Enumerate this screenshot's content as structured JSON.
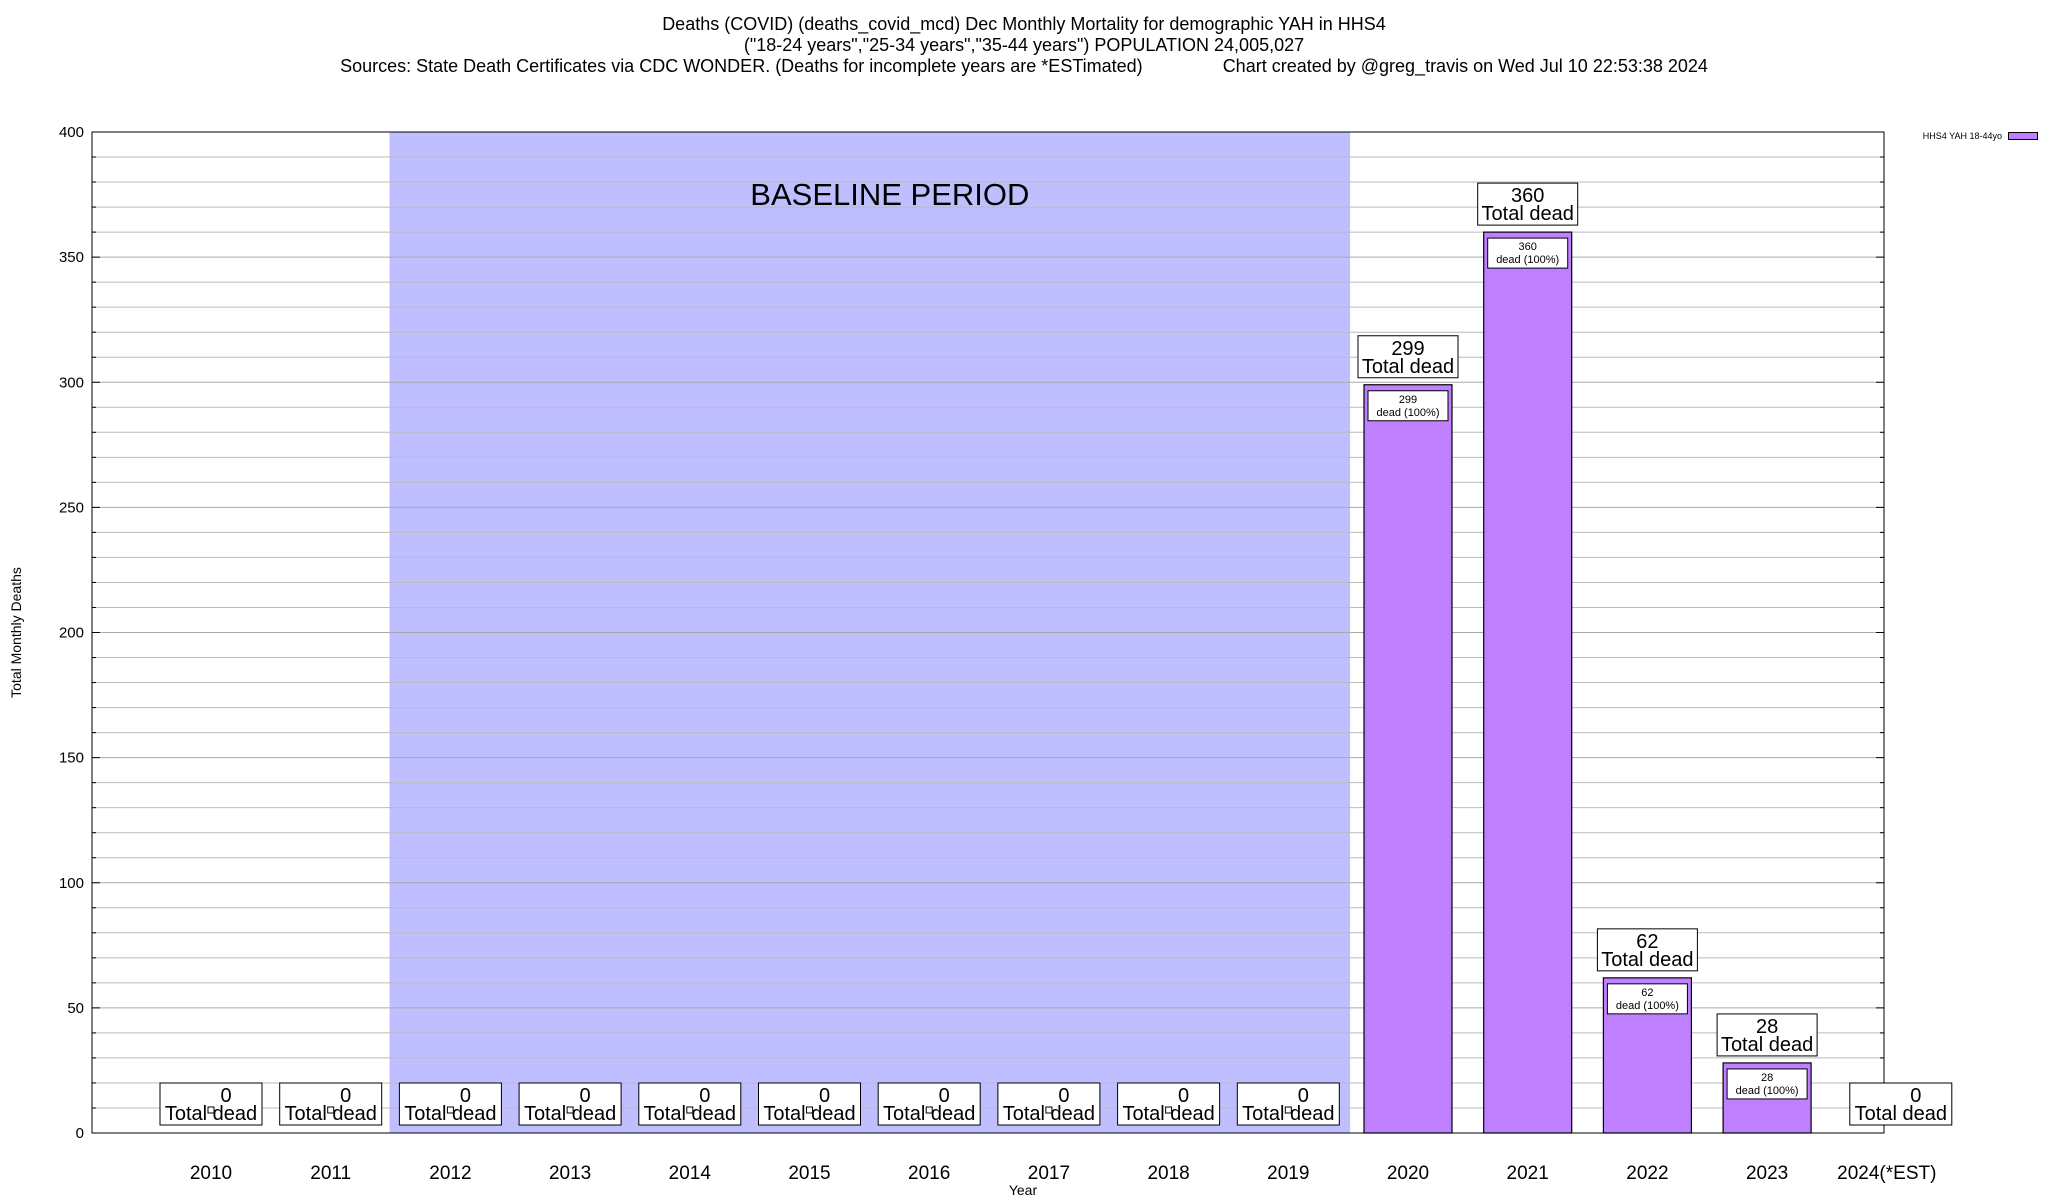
{
  "header": {
    "title_line1": "Deaths (COVID) (deaths_covid_mcd) Dec Monthly Mortality for demographic YAH in HHS4",
    "title_line2": "(\"18-24 years\",\"25-34 years\",\"35-44 years\") POPULATION 24,005,027",
    "sources": "Sources: State Death Certificates via CDC WONDER. (Deaths for incomplete years are *ESTimated)",
    "credit": "Chart created by @greg_travis on Wed Jul 10 22:53:38 2024"
  },
  "legend": {
    "label": "HHS4 YAH 18-44yo",
    "color": "#bf80ff"
  },
  "chart_data": {
    "type": "bar",
    "categories": [
      "2010",
      "2011",
      "2012",
      "2013",
      "2014",
      "2015",
      "2016",
      "2017",
      "2018",
      "2019",
      "2020",
      "2021",
      "2022",
      "2023",
      "2024(*EST)"
    ],
    "series": [
      {
        "name": "HHS4 YAH 18-44yo",
        "values": [
          0,
          0,
          0,
          0,
          0,
          0,
          0,
          0,
          0,
          0,
          299,
          360,
          62,
          28,
          0
        ]
      }
    ],
    "xlabel": "Year",
    "ylabel": "Total Monthly Deaths",
    "ylim": [
      0,
      400
    ],
    "yticks": [
      0,
      50,
      100,
      150,
      200,
      250,
      300,
      350,
      400
    ],
    "minor_grid_step": 10,
    "grid": true,
    "legend_position": "top-right",
    "baseline_region": {
      "label": "BASELINE PERIOD",
      "from": "2012",
      "to": "2019",
      "color": "#bfbfff"
    },
    "total_label_suffix": "Total dead",
    "inner_label_suffix": "dead (100%)",
    "bar_color": "#bf80ff"
  }
}
